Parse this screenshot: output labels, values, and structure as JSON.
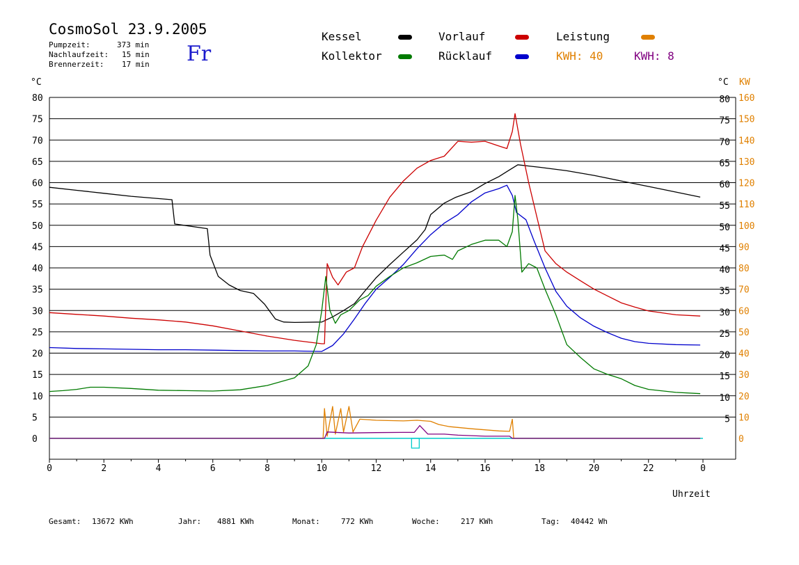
{
  "header": {
    "title": "CosmoSol 23.9.2005",
    "weekday": "Fr",
    "info": [
      {
        "label": "Pumpzeit:",
        "value": "373 min"
      },
      {
        "label": "Nachlaufzeit:",
        "value": "15 min"
      },
      {
        "label": "Brennerzeit:",
        "value": "17 min"
      }
    ]
  },
  "legend": {
    "kessel": "Kessel",
    "kollektor": "Kollektor",
    "vorlauf": "Vorlauf",
    "ruecklauf": "Rücklauf",
    "leistung": "Leistung",
    "kwh_orange": "KWH: 40",
    "kwh_purple": "KWH: 8"
  },
  "axes": {
    "left_unit": "°C",
    "right_unit_temp": "°C",
    "right_unit_power": "KW",
    "xlabel": "Uhrzeit"
  },
  "footer": [
    {
      "label": "Gesamt:",
      "value": "13672 KWh"
    },
    {
      "label": "Jahr:",
      "value": "4881 KWh"
    },
    {
      "label": "Monat:",
      "value": "772 KWh"
    },
    {
      "label": "Woche:",
      "value": "217 KWh"
    },
    {
      "label": "Tag:",
      "value": "40442 Wh"
    }
  ],
  "colors": {
    "kessel": "#000000",
    "kollektor": "#007a00",
    "vorlauf": "#cc0000",
    "ruecklauf": "#0000cc",
    "leistung": "#e08000",
    "kwh2": "#800080",
    "baseline": "#00cccc"
  },
  "chart_data": {
    "type": "line",
    "xlabel": "Uhrzeit",
    "ylabel": "°C",
    "ylabel_right": "KW",
    "xlim": [
      0,
      24
    ],
    "ylim": [
      0,
      80
    ],
    "ylim_right": [
      0,
      160
    ],
    "grid": true,
    "x_ticks": [
      "0",
      "2",
      "4",
      "6",
      "8",
      "10",
      "12",
      "14",
      "16",
      "18",
      "20",
      "22",
      "0"
    ],
    "y_ticks_left": [
      "0",
      "5",
      "10",
      "15",
      "20",
      "25",
      "30",
      "35",
      "40",
      "45",
      "50",
      "55",
      "60",
      "65",
      "70",
      "75",
      "80"
    ],
    "y_ticks_right_temp": [
      "5",
      "10",
      "15",
      "20",
      "25",
      "30",
      "35",
      "40",
      "45",
      "50",
      "55",
      "60",
      "65",
      "70",
      "75",
      "80"
    ],
    "y_ticks_right_power": [
      "0",
      "10",
      "20",
      "30",
      "40",
      "50",
      "60",
      "70",
      "80",
      "90",
      "100",
      "110",
      "120",
      "130",
      "140",
      "150",
      "160"
    ],
    "series": [
      {
        "name": "Kessel",
        "color": "#000000",
        "points": [
          [
            0,
            58.9
          ],
          [
            1,
            58.2
          ],
          [
            2,
            57.5
          ],
          [
            3,
            56.8
          ],
          [
            4.5,
            56
          ],
          [
            4.6,
            50.3
          ],
          [
            5.8,
            49.2
          ],
          [
            5.9,
            43
          ],
          [
            6.2,
            38
          ],
          [
            6.6,
            36
          ],
          [
            7,
            34.7
          ],
          [
            7.5,
            34
          ],
          [
            7.9,
            31.5
          ],
          [
            8.3,
            28
          ],
          [
            8.6,
            27.3
          ],
          [
            9,
            27.2
          ],
          [
            10,
            27.3
          ],
          [
            10.4,
            28.5
          ],
          [
            10.8,
            30
          ],
          [
            11.2,
            31.6
          ],
          [
            11.6,
            34.7
          ],
          [
            12,
            37.7
          ],
          [
            12.5,
            40.8
          ],
          [
            13,
            43.7
          ],
          [
            13.5,
            46.6
          ],
          [
            13.8,
            49
          ],
          [
            14,
            52.5
          ],
          [
            14.5,
            55.2
          ],
          [
            14.9,
            56.5
          ],
          [
            15.5,
            57.9
          ],
          [
            16,
            59.8
          ],
          [
            16.5,
            61.4
          ],
          [
            16.8,
            62.6
          ],
          [
            17.2,
            64.2
          ],
          [
            18,
            63.6
          ],
          [
            19,
            62.8
          ],
          [
            20,
            61.7
          ],
          [
            21,
            60.4
          ],
          [
            22,
            59.1
          ],
          [
            23,
            57.8
          ],
          [
            23.9,
            56.6
          ]
        ]
      },
      {
        "name": "Vorlauf",
        "color": "#cc0000",
        "points": [
          [
            0,
            29.5
          ],
          [
            1,
            29.1
          ],
          [
            2,
            28.7
          ],
          [
            3,
            28.2
          ],
          [
            4,
            27.8
          ],
          [
            5,
            27.3
          ],
          [
            6,
            26.4
          ],
          [
            7,
            25.2
          ],
          [
            8,
            24
          ],
          [
            9,
            23
          ],
          [
            10,
            22.2
          ],
          [
            10.1,
            22.2
          ],
          [
            10.2,
            41
          ],
          [
            10.4,
            37.8
          ],
          [
            10.6,
            36
          ],
          [
            10.9,
            39
          ],
          [
            11.2,
            40
          ],
          [
            11.5,
            45
          ],
          [
            12,
            51.2
          ],
          [
            12.5,
            56.6
          ],
          [
            13,
            60.4
          ],
          [
            13.5,
            63.4
          ],
          [
            14,
            65.2
          ],
          [
            14.5,
            66.2
          ],
          [
            15,
            69.7
          ],
          [
            15.5,
            69.5
          ],
          [
            16,
            69.7
          ],
          [
            16.5,
            68.6
          ],
          [
            16.8,
            68
          ],
          [
            17,
            72
          ],
          [
            17.1,
            76.2
          ],
          [
            17.3,
            69
          ],
          [
            17.6,
            60
          ],
          [
            17.9,
            52
          ],
          [
            18.2,
            44
          ],
          [
            18.6,
            41
          ],
          [
            19,
            39
          ],
          [
            19.5,
            37
          ],
          [
            20,
            35
          ],
          [
            20.5,
            33.4
          ],
          [
            21,
            31.8
          ],
          [
            21.5,
            30.8
          ],
          [
            22,
            29.9
          ],
          [
            23,
            29
          ],
          [
            23.9,
            28.7
          ]
        ]
      },
      {
        "name": "Rücklauf",
        "color": "#0000cc",
        "points": [
          [
            0,
            21.3
          ],
          [
            1,
            21.1
          ],
          [
            2,
            21
          ],
          [
            3,
            20.9
          ],
          [
            4,
            20.8
          ],
          [
            5,
            20.8
          ],
          [
            6,
            20.7
          ],
          [
            7,
            20.6
          ],
          [
            8,
            20.5
          ],
          [
            9,
            20.5
          ],
          [
            10,
            20.4
          ],
          [
            10.4,
            21.8
          ],
          [
            10.8,
            24.5
          ],
          [
            11.2,
            28
          ],
          [
            11.6,
            31.7
          ],
          [
            12,
            35
          ],
          [
            12.5,
            37.8
          ],
          [
            13,
            40.8
          ],
          [
            13.5,
            44.5
          ],
          [
            14,
            47.8
          ],
          [
            14.5,
            50.5
          ],
          [
            15,
            52.5
          ],
          [
            15.5,
            55.5
          ],
          [
            16,
            57.6
          ],
          [
            16.5,
            58.6
          ],
          [
            16.8,
            59.4
          ],
          [
            17,
            57
          ],
          [
            17.15,
            53
          ],
          [
            17.5,
            51.3
          ],
          [
            17.8,
            46.3
          ],
          [
            18.2,
            40
          ],
          [
            18.6,
            34.5
          ],
          [
            19,
            31
          ],
          [
            19.5,
            28.3
          ],
          [
            20,
            26.3
          ],
          [
            20.5,
            24.8
          ],
          [
            21,
            23.5
          ],
          [
            21.5,
            22.7
          ],
          [
            22,
            22.3
          ],
          [
            23,
            22
          ],
          [
            23.9,
            21.9
          ]
        ]
      },
      {
        "name": "Kollektor",
        "color": "#007a00",
        "points": [
          [
            0,
            11
          ],
          [
            0.5,
            11.2
          ],
          [
            1,
            11.5
          ],
          [
            1.5,
            12
          ],
          [
            2,
            12
          ],
          [
            3,
            11.7
          ],
          [
            4,
            11.3
          ],
          [
            5,
            11.2
          ],
          [
            6,
            11.1
          ],
          [
            7,
            11.4
          ],
          [
            8,
            12.4
          ],
          [
            8.5,
            13.3
          ],
          [
            9,
            14.2
          ],
          [
            9.5,
            17
          ],
          [
            9.8,
            22
          ],
          [
            10,
            30
          ],
          [
            10.15,
            38
          ],
          [
            10.3,
            30
          ],
          [
            10.5,
            27
          ],
          [
            10.7,
            29
          ],
          [
            11,
            30
          ],
          [
            11.4,
            32.5
          ],
          [
            11.7,
            33.5
          ],
          [
            12,
            35.7
          ],
          [
            12.5,
            38
          ],
          [
            13,
            40
          ],
          [
            13.5,
            41.2
          ],
          [
            14,
            42.7
          ],
          [
            14.5,
            43
          ],
          [
            14.8,
            42
          ],
          [
            15,
            44
          ],
          [
            15.5,
            45.5
          ],
          [
            16,
            46.5
          ],
          [
            16.5,
            46.5
          ],
          [
            16.8,
            45
          ],
          [
            17,
            48.5
          ],
          [
            17.1,
            57
          ],
          [
            17.2,
            51.5
          ],
          [
            17.35,
            39
          ],
          [
            17.6,
            41
          ],
          [
            17.9,
            40
          ],
          [
            18.2,
            35
          ],
          [
            18.6,
            29
          ],
          [
            19,
            22
          ],
          [
            19.5,
            19
          ],
          [
            20,
            16.3
          ],
          [
            20.5,
            15
          ],
          [
            21,
            14
          ],
          [
            21.5,
            12.4
          ],
          [
            22,
            11.5
          ],
          [
            23,
            10.8
          ],
          [
            23.9,
            10.5
          ]
        ]
      },
      {
        "name": "Leistung",
        "color": "#e08000",
        "axis": "right",
        "points": [
          [
            0,
            0
          ],
          [
            10.05,
            0
          ],
          [
            10.1,
            14
          ],
          [
            10.2,
            1
          ],
          [
            10.4,
            15
          ],
          [
            10.5,
            2
          ],
          [
            10.7,
            14
          ],
          [
            10.8,
            3
          ],
          [
            11,
            15
          ],
          [
            11.15,
            3
          ],
          [
            11.4,
            9
          ],
          [
            12,
            8.5
          ],
          [
            13,
            8.2
          ],
          [
            13.5,
            8.5
          ],
          [
            14,
            8
          ],
          [
            14.3,
            6.5
          ],
          [
            14.7,
            5.5
          ],
          [
            15.5,
            4.5
          ],
          [
            16.5,
            3.5
          ],
          [
            16.9,
            3.3
          ],
          [
            17,
            9
          ],
          [
            17.05,
            0
          ],
          [
            23.9,
            0
          ]
        ]
      },
      {
        "name": "KWH 8",
        "color": "#800080",
        "axis": "right",
        "points": [
          [
            0,
            0
          ],
          [
            10.1,
            0
          ],
          [
            10.2,
            3
          ],
          [
            11,
            2.5
          ],
          [
            12,
            2.7
          ],
          [
            13,
            2.8
          ],
          [
            13.4,
            2.8
          ],
          [
            13.6,
            6
          ],
          [
            13.9,
            2
          ],
          [
            14.5,
            2
          ],
          [
            15,
            1.5
          ],
          [
            16,
            1
          ],
          [
            16.9,
            1
          ],
          [
            17,
            0
          ],
          [
            23.9,
            0
          ]
        ]
      }
    ]
  }
}
